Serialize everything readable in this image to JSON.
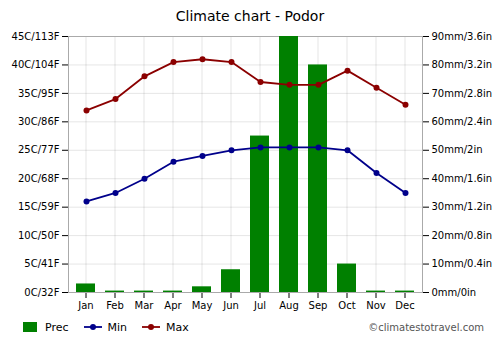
{
  "chart_data": {
    "type": "combo",
    "title": "Climate chart - Podor",
    "categories": [
      "Jan",
      "Feb",
      "Mar",
      "Apr",
      "May",
      "Jun",
      "Jul",
      "Aug",
      "Sep",
      "Oct",
      "Nov",
      "Dec"
    ],
    "series": [
      {
        "name": "Prec",
        "type": "bar",
        "axis": "y2",
        "color": "#008000",
        "values": [
          3,
          0.5,
          0.5,
          0.5,
          2,
          8,
          55,
          90,
          80,
          10,
          0.5,
          0.5
        ]
      },
      {
        "name": "Min",
        "type": "line",
        "color": "#00008B",
        "marker": "circle",
        "values": [
          16,
          17.5,
          20,
          23,
          24,
          25,
          25.5,
          25.5,
          25.5,
          25,
          21,
          17.5
        ]
      },
      {
        "name": "Max",
        "type": "line",
        "color": "#8B0000",
        "marker": "circle",
        "values": [
          32,
          34,
          38,
          40.5,
          41,
          40.5,
          37,
          36.5,
          36.5,
          39,
          36,
          33
        ]
      }
    ],
    "ylim": [
      0,
      45
    ],
    "yticks": [
      {
        "value": 0,
        "label": "0C/32F"
      },
      {
        "value": 5,
        "label": "5C/41F"
      },
      {
        "value": 10,
        "label": "10C/50F"
      },
      {
        "value": 15,
        "label": "15C/59F"
      },
      {
        "value": 20,
        "label": "20C/68F"
      },
      {
        "value": 25,
        "label": "25C/77F"
      },
      {
        "value": 30,
        "label": "30C/86F"
      },
      {
        "value": 35,
        "label": "35C/95F"
      },
      {
        "value": 40,
        "label": "40C/104F"
      },
      {
        "value": 45,
        "label": "45C/113F"
      }
    ],
    "y2lim": [
      0,
      90
    ],
    "y2ticks": [
      {
        "value": 0,
        "label": "0mm/0in"
      },
      {
        "value": 10,
        "label": "10mm/0.4in"
      },
      {
        "value": 20,
        "label": "20mm/0.8in"
      },
      {
        "value": 30,
        "label": "30mm/1.2in"
      },
      {
        "value": 40,
        "label": "40mm/1.6in"
      },
      {
        "value": 50,
        "label": "50mm/2in"
      },
      {
        "value": 60,
        "label": "60mm/2.4in"
      },
      {
        "value": 70,
        "label": "70mm/2.8in"
      },
      {
        "value": 80,
        "label": "80mm/3.2in"
      },
      {
        "value": 90,
        "label": "90mm/3.6in"
      }
    ],
    "grid": true,
    "legend": "bottom",
    "annotations": [
      {
        "text": "©climatestotravel.com"
      }
    ]
  }
}
